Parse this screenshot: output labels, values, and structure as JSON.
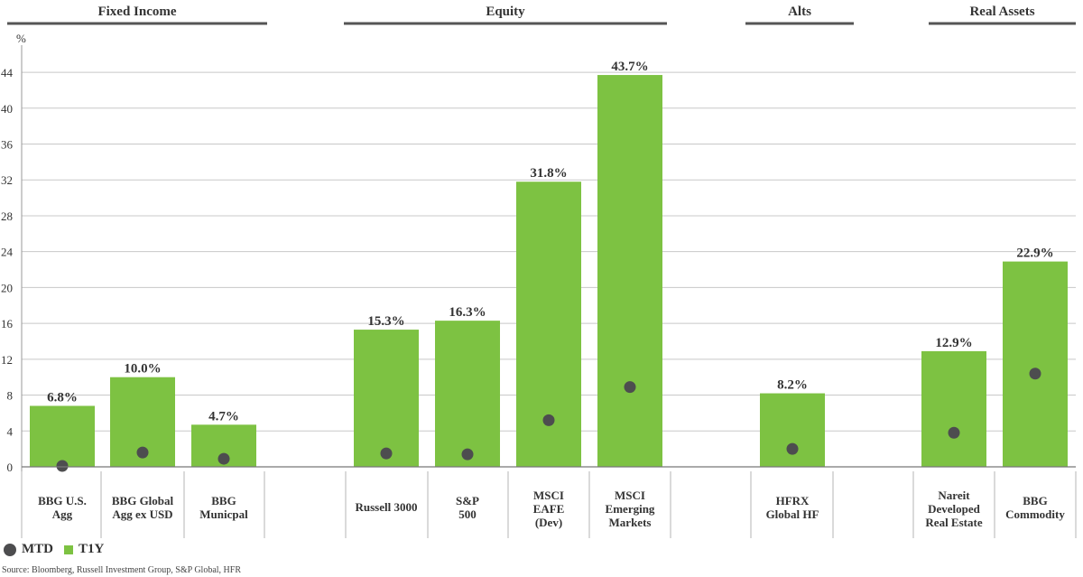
{
  "chart_data": {
    "type": "bar",
    "ylabel": "%",
    "ylim": [
      0,
      48
    ],
    "yticks": [
      0,
      4,
      8,
      12,
      16,
      20,
      24,
      28,
      32,
      36,
      40,
      44
    ],
    "groups": [
      {
        "name": "Fixed Income",
        "categories": [
          "BBG U.S. Agg",
          "BBG Global Agg ex USD",
          "BBG Municpal"
        ]
      },
      {
        "name": "Equity",
        "categories": [
          "Russell 3000",
          "S&P 500",
          "MSCI EAFE (Dev)",
          "MSCI Emerging Markets"
        ]
      },
      {
        "name": "Alts",
        "categories": [
          "HFRX Global HF"
        ]
      },
      {
        "name": "Real Assets",
        "categories": [
          "Nareit Developed Real Estate",
          "BBG Commodity"
        ]
      }
    ],
    "categories": [
      {
        "lines": [
          "BBG U.S.",
          "Agg"
        ]
      },
      {
        "lines": [
          "BBG Global",
          "Agg ex USD"
        ]
      },
      {
        "lines": [
          "BBG",
          "Municpal"
        ]
      },
      {
        "lines": [
          "Russell 3000"
        ]
      },
      {
        "lines": [
          "S&P",
          "500"
        ]
      },
      {
        "lines": [
          "MSCI",
          "EAFE",
          "(Dev)"
        ]
      },
      {
        "lines": [
          "MSCI",
          "Emerging",
          "Markets"
        ]
      },
      {
        "lines": [
          "HFRX",
          "Global HF"
        ]
      },
      {
        "lines": [
          "Nareit",
          "Developed",
          "Real Estate"
        ]
      },
      {
        "lines": [
          "BBG",
          "Commodity"
        ]
      }
    ],
    "series": [
      {
        "name": "T1Y",
        "kind": "bar",
        "color": "#7dc242",
        "values": [
          6.8,
          10.0,
          4.7,
          15.3,
          16.3,
          31.8,
          43.7,
          8.2,
          12.9,
          22.9
        ],
        "labels": [
          "6.8%",
          "10.0%",
          "4.7%",
          "15.3%",
          "16.3%",
          "31.8%",
          "43.7%",
          "8.2%",
          "12.9%",
          "22.9%"
        ]
      },
      {
        "name": "MTD",
        "kind": "dot",
        "color": "#4d4d4f",
        "values": [
          0.1,
          1.6,
          0.9,
          1.5,
          1.4,
          5.2,
          8.9,
          2.0,
          3.8,
          10.4
        ]
      }
    ]
  },
  "legend": {
    "mtd": "MTD",
    "t1y": "T1Y"
  },
  "source": "Source: Bloomberg, Russell Investment Group, S&P Global, HFR"
}
